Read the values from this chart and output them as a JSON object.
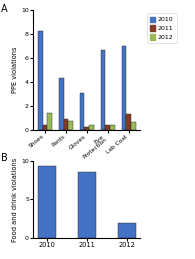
{
  "title_a": "A",
  "title_b": "B",
  "ppe_categories": [
    "Shoes",
    "Pants",
    "Gloves",
    "Eye\nProtection",
    "Lab Coat"
  ],
  "ppe_2010": [
    8.3,
    4.3,
    3.1,
    6.7,
    7.0
  ],
  "ppe_2011": [
    0.4,
    0.9,
    0.2,
    0.4,
    1.3
  ],
  "ppe_2012": [
    1.4,
    0.7,
    0.4,
    0.4,
    0.6
  ],
  "food_years": [
    "2010",
    "2011",
    "2012"
  ],
  "food_values": [
    9.3,
    8.5,
    2.0
  ],
  "color_2010": "#4472C4",
  "color_2011": "#843C29",
  "color_2012": "#9BBB59",
  "bar_width": 0.22,
  "ppe_ylim": [
    0,
    10
  ],
  "food_ylim": [
    0,
    10
  ],
  "ppe_yticks": [
    0,
    2,
    4,
    6,
    8,
    10
  ],
  "food_yticks": [
    0,
    5,
    10
  ],
  "ylabel_a": "PPE violations",
  "ylabel_b": "Food and drink violations",
  "legend_labels": [
    "2010",
    "2011",
    "2012"
  ]
}
